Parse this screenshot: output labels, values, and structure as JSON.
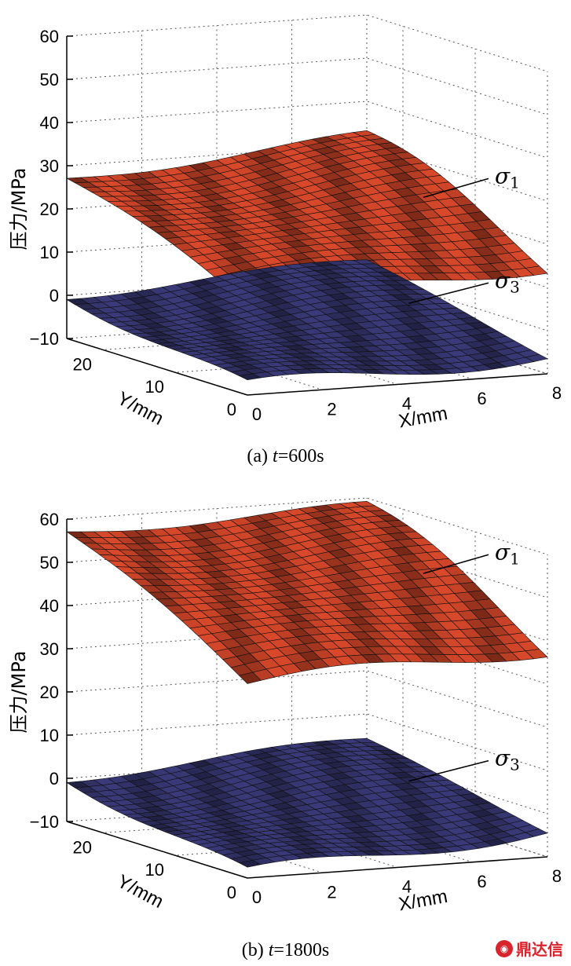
{
  "chart_data": [
    {
      "type": "surface",
      "caption_prefix": "(a) ",
      "caption_var": "t",
      "caption_suffix": "=600s",
      "zlabel": "压力/MPa",
      "xlabel": "X/mm",
      "ylabel": "Y/mm",
      "zlim": [
        -10,
        60
      ],
      "xlim": [
        0,
        8
      ],
      "ylim": [
        0,
        25
      ],
      "zticks": [
        "60",
        "50",
        "40",
        "30",
        "20",
        "10",
        "0",
        "−10"
      ],
      "xticks": [
        "0",
        "2",
        "4",
        "6",
        "8"
      ],
      "yticks": [
        "20",
        "10",
        "0"
      ],
      "grid": true,
      "series": [
        {
          "name": "σ",
          "subscript": "1",
          "color": "#d9482a",
          "corners": {
            "x0_y25": 27,
            "x8_y25": 32,
            "x0_y0": 11,
            "x8_y0": 15
          }
        },
        {
          "name": "σ",
          "subscript": "3",
          "color": "#3a3a7a",
          "corners": {
            "x0_y25": 0,
            "x8_y25": 3,
            "x0_y0": -8,
            "x8_y0": -6
          }
        }
      ]
    },
    {
      "type": "surface",
      "caption_prefix": "(b) ",
      "caption_var": "t",
      "caption_suffix": "=1800s",
      "zlabel": "压力/MPa",
      "xlabel": "X/mm",
      "ylabel": "Y/mm",
      "zlim": [
        -10,
        60
      ],
      "xlim": [
        0,
        8
      ],
      "ylim": [
        0,
        25
      ],
      "zticks": [
        "60",
        "50",
        "40",
        "30",
        "20",
        "10",
        "0",
        "−10"
      ],
      "xticks": [
        "0",
        "2",
        "4",
        "6",
        "8"
      ],
      "yticks": [
        "20",
        "10",
        "0"
      ],
      "grid": true,
      "series": [
        {
          "name": "σ",
          "subscript": "1",
          "color": "#d9482a",
          "corners": {
            "x0_y25": 57,
            "x8_y25": 58,
            "x0_y0": 35,
            "x8_y0": 38
          }
        },
        {
          "name": "σ",
          "subscript": "3",
          "color": "#3a3a7a",
          "corners": {
            "x0_y25": 0,
            "x8_y25": 4,
            "x0_y0": -9,
            "x8_y0": -4
          }
        }
      ]
    }
  ],
  "watermark": {
    "text": "鼎达信"
  }
}
